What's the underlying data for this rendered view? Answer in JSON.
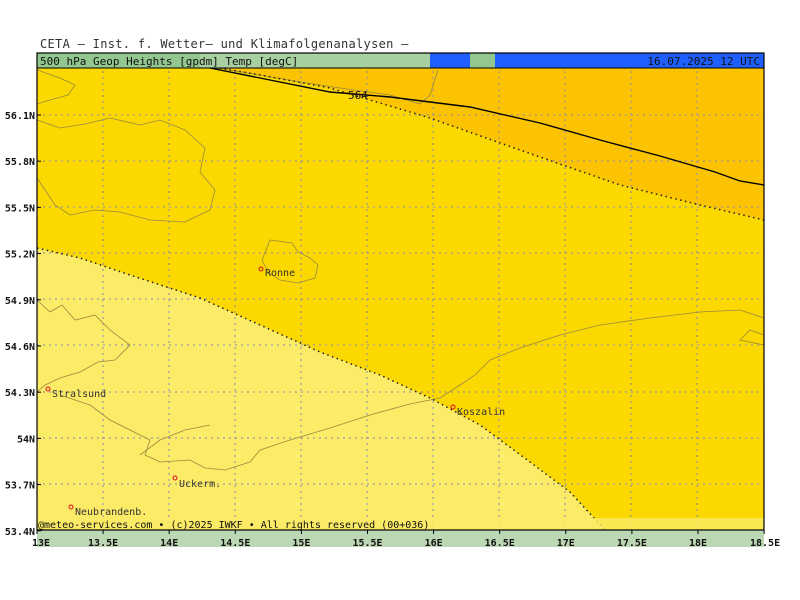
{
  "header": {
    "title": "CETA — Inst. f. Wetter— und Klimafolgenanalysen —"
  },
  "legend_bar": {
    "parameters": "500 hPa Geop Heights [gpdm] Temp [degC]",
    "valid_time": "16.07.2025 12 UTC"
  },
  "footer": {
    "credit": "@meteo-services.com • (c)2025 IWKF • All rights reserved (00+036)"
  },
  "axes": {
    "y_ticks": [
      "56.1N",
      "55.8N",
      "55.5N",
      "55.2N",
      "54.9N",
      "54.6N",
      "54.3N",
      "54N",
      "53.7N",
      "53.4N"
    ],
    "x_ticks": [
      "13E",
      "13.5E",
      "14E",
      "14.5E",
      "15E",
      "15.5E",
      "16E",
      "16.5E",
      "17E",
      "17.5E",
      "18E",
      "18.5E"
    ]
  },
  "contours": {
    "height_label": "564"
  },
  "cities": [
    {
      "name": "Ronne"
    },
    {
      "name": "Stralsund"
    },
    {
      "name": "Koszalin"
    },
    {
      "name": "Uckerm."
    },
    {
      "name": "Neubrandenb."
    }
  ],
  "colors": {
    "zone_light": "#fbeb66",
    "zone_mid": "#fbd800",
    "zone_dark": "#fbc300",
    "legend_green": "#a8cfa0",
    "legend_blue": "#1f5fff",
    "legend_bg": "#93c790"
  }
}
